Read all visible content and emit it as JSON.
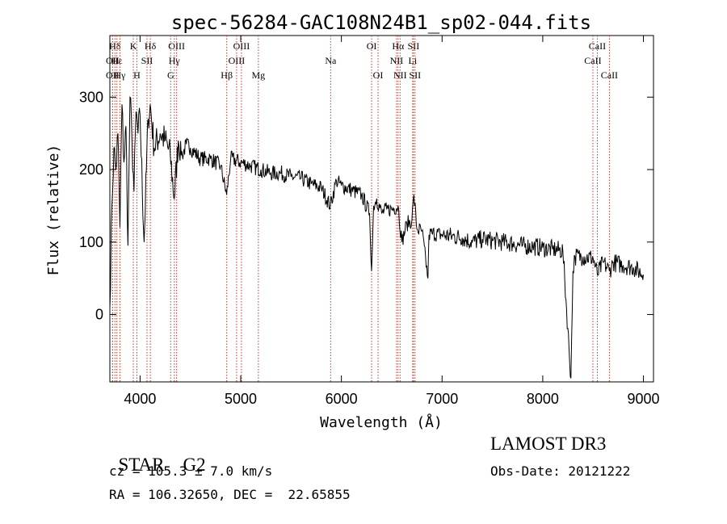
{
  "chart_data": {
    "type": "line",
    "title": "spec-56284-GAC108N24B1_sp02-044.fits",
    "xlabel": "Wavelength (Å)",
    "ylabel": "Flux (relative)",
    "xlim": [
      3700,
      9100
    ],
    "ylim": [
      -93,
      385
    ],
    "xticks": [
      4000,
      5000,
      6000,
      7000,
      8000,
      9000
    ],
    "yticks": [
      0,
      100,
      200,
      300
    ],
    "series": [
      {
        "name": "flux",
        "x": [
          3700,
          3720,
          3740,
          3760,
          3780,
          3800,
          3820,
          3840,
          3860,
          3880,
          3900,
          3920,
          3940,
          3960,
          3980,
          4000,
          4040,
          4080,
          4100,
          4140,
          4200,
          4250,
          4300,
          4340,
          4380,
          4420,
          4460,
          4500,
          4600,
          4700,
          4800,
          4860,
          4900,
          5000,
          5100,
          5200,
          5300,
          5400,
          5500,
          5600,
          5700,
          5800,
          5890,
          5950,
          6000,
          6100,
          6200,
          6280,
          6300,
          6320,
          6350,
          6400,
          6450,
          6500,
          6563,
          6600,
          6650,
          6700,
          6720,
          6750,
          6800,
          6860,
          6870,
          6900,
          7000,
          7100,
          7200,
          7300,
          7400,
          7500,
          7600,
          7700,
          7800,
          7900,
          8000,
          8100,
          8200,
          8280,
          8300,
          8320,
          8400,
          8500,
          8542,
          8600,
          8662,
          8700,
          8800,
          8900,
          9000
        ],
        "y": [
          10,
          150,
          230,
          200,
          250,
          120,
          290,
          210,
          260,
          95,
          300,
          240,
          170,
          280,
          250,
          275,
          100,
          270,
          290,
          230,
          250,
          240,
          220,
          160,
          240,
          220,
          235,
          230,
          215,
          215,
          205,
          165,
          215,
          210,
          205,
          200,
          195,
          195,
          190,
          188,
          180,
          175,
          150,
          185,
          178,
          172,
          165,
          140,
          60,
          150,
          160,
          140,
          145,
          145,
          150,
          100,
          125,
          130,
          165,
          118,
          115,
          50,
          110,
          112,
          110,
          108,
          106,
          100,
          104,
          102,
          100,
          98,
          95,
          94,
          92,
          90,
          88,
          -88,
          60,
          80,
          80,
          78,
          55,
          72,
          60,
          72,
          68,
          65,
          55
        ]
      }
    ],
    "line_annotations": [
      {
        "label": "Hδ",
        "x": 3750,
        "row": 1
      },
      {
        "label": "OII",
        "x": 3727,
        "row": 2
      },
      {
        "label": "OII",
        "x": 3727,
        "row": 3
      },
      {
        "label": "Hε",
        "x": 3770,
        "row": 2
      },
      {
        "label": "Hγ",
        "x": 3800,
        "row": 3
      },
      {
        "label": "K",
        "x": 3933,
        "row": 1
      },
      {
        "label": "H",
        "x": 3968,
        "row": 3
      },
      {
        "label": "SII",
        "x": 4069,
        "row": 2
      },
      {
        "label": "Hδ",
        "x": 4102,
        "row": 1
      },
      {
        "label": "OIII",
        "x": 4363,
        "row": 1
      },
      {
        "label": "Hγ",
        "x": 4340,
        "row": 2
      },
      {
        "label": "G",
        "x": 4304,
        "row": 3
      },
      {
        "label": "Hβ",
        "x": 4861,
        "row": 3
      },
      {
        "label": "OIII",
        "x": 5007,
        "row": 1
      },
      {
        "label": "OIII",
        "x": 4959,
        "row": 2
      },
      {
        "label": "Mg",
        "x": 5175,
        "row": 3
      },
      {
        "label": "Na",
        "x": 5893,
        "row": 2
      },
      {
        "label": "OI",
        "x": 6300,
        "row": 1
      },
      {
        "label": "OI",
        "x": 6364,
        "row": 3
      },
      {
        "label": "Hα",
        "x": 6563,
        "row": 1
      },
      {
        "label": "NII",
        "x": 6548,
        "row": 2
      },
      {
        "label": "NII",
        "x": 6583,
        "row": 3
      },
      {
        "label": "SII",
        "x": 6716,
        "row": 1
      },
      {
        "label": "Li",
        "x": 6708,
        "row": 2
      },
      {
        "label": "SII",
        "x": 6731,
        "row": 3
      },
      {
        "label": "CaII",
        "x": 8542,
        "row": 1
      },
      {
        "label": "CaII",
        "x": 8498,
        "row": 2
      },
      {
        "label": "CaII",
        "x": 8662,
        "row": 3
      }
    ]
  },
  "info": {
    "class_label": "STAR",
    "subclass": "G2",
    "cz": "cz = 105.3 ± 7.0 km/s",
    "coords": "RA = 106.32650, DEC =  22.65855",
    "survey": "LAMOST DR3",
    "obs_date": "Obs-Date: 20121222"
  }
}
